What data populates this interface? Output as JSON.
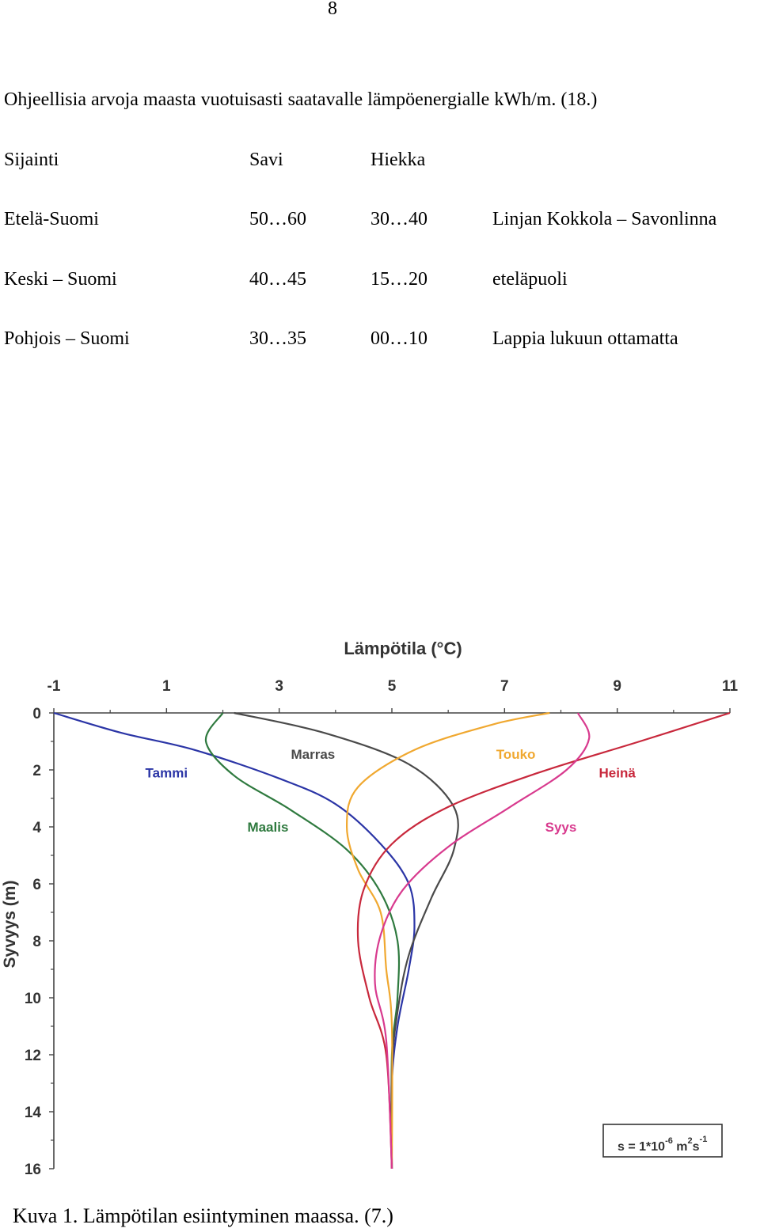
{
  "page_number": "8",
  "intro_text": "Ohjeellisia arvoja maasta vuotuisasti saatavalle lämpöenergialle kWh/m. (18.)",
  "table": {
    "headers": [
      "Sijainti",
      "Savi",
      "Hiekka"
    ],
    "rows": [
      [
        "Etelä-Suomi",
        "50…60",
        "30…40",
        "Linjan Kokkola – Savonlinna"
      ],
      [
        "Keski – Suomi",
        "40…45",
        "15…20",
        "eteläpuoli"
      ],
      [
        "Pohjois – Suomi",
        "30…35",
        "00…10",
        "Lappia lukuun ottamatta"
      ]
    ]
  },
  "chart_data": {
    "type": "line",
    "title": "Lämpötila (°C)",
    "xlabel": "Lämpötila (°C)",
    "ylabel": "Syvyys (m)",
    "xlim": [
      -1,
      11
    ],
    "ylim": [
      0,
      16
    ],
    "x_ticks": [
      "-1",
      "1",
      "3",
      "5",
      "7",
      "9",
      "11"
    ],
    "y_ticks": [
      "0",
      "2",
      "4",
      "6",
      "8",
      "10",
      "12",
      "14",
      "16"
    ],
    "annotation": {
      "text": "s = 1*10",
      "exp1": "-6",
      "unit": " m",
      "exp2": "2",
      "unit2": "s",
      "exp3": "-1"
    },
    "series": [
      {
        "name": "Tammi",
        "color": "#2b35a6",
        "points": [
          [
            -1.0,
            0
          ],
          [
            0.2,
            0.7
          ],
          [
            1.5,
            1.3
          ],
          [
            3.0,
            2.3
          ],
          [
            4.0,
            3.2
          ],
          [
            4.8,
            4.6
          ],
          [
            5.3,
            6.0
          ],
          [
            5.4,
            7.5
          ],
          [
            5.3,
            9.0
          ],
          [
            5.1,
            11
          ],
          [
            5.0,
            13
          ],
          [
            5.0,
            16
          ]
        ]
      },
      {
        "name": "Maalis",
        "color": "#2f7a3f",
        "points": [
          [
            2.0,
            0
          ],
          [
            1.7,
            1.0
          ],
          [
            2.2,
            2.2
          ],
          [
            3.2,
            3.4
          ],
          [
            4.2,
            4.8
          ],
          [
            4.8,
            6.3
          ],
          [
            5.1,
            8.0
          ],
          [
            5.1,
            10.0
          ],
          [
            5.0,
            12
          ],
          [
            5.0,
            16
          ]
        ]
      },
      {
        "name": "Marras",
        "color": "#4a4a4a",
        "points": [
          [
            2.2,
            0
          ],
          [
            3.8,
            0.7
          ],
          [
            5.3,
            1.8
          ],
          [
            6.1,
            3.3
          ],
          [
            6.1,
            4.8
          ],
          [
            5.7,
            6.5
          ],
          [
            5.3,
            8.5
          ],
          [
            5.1,
            10.5
          ],
          [
            5.0,
            12.5
          ],
          [
            5.0,
            16
          ]
        ]
      },
      {
        "name": "Touko",
        "color": "#f0a830",
        "points": [
          [
            7.8,
            0
          ],
          [
            6.8,
            0.4
          ],
          [
            5.4,
            1.3
          ],
          [
            4.4,
            2.6
          ],
          [
            4.2,
            4.0
          ],
          [
            4.4,
            5.5
          ],
          [
            4.8,
            7.0
          ],
          [
            4.9,
            9.0
          ],
          [
            5.0,
            11
          ],
          [
            5.0,
            16
          ]
        ]
      },
      {
        "name": "Heinä",
        "color": "#c8283c",
        "points": [
          [
            11.0,
            0
          ],
          [
            9.4,
            1.0
          ],
          [
            7.6,
            2.1
          ],
          [
            6.0,
            3.3
          ],
          [
            5.0,
            4.6
          ],
          [
            4.5,
            6.2
          ],
          [
            4.4,
            8.0
          ],
          [
            4.6,
            10.0
          ],
          [
            4.9,
            12
          ],
          [
            5.0,
            16
          ]
        ]
      },
      {
        "name": "Syys",
        "color": "#d83a8e",
        "points": [
          [
            8.3,
            0
          ],
          [
            8.5,
            0.9
          ],
          [
            8.1,
            2.0
          ],
          [
            7.1,
            3.3
          ],
          [
            6.0,
            4.7
          ],
          [
            5.2,
            6.2
          ],
          [
            4.8,
            7.8
          ],
          [
            4.7,
            9.5
          ],
          [
            4.9,
            11.5
          ],
          [
            5.0,
            16
          ]
        ]
      }
    ]
  }
}
